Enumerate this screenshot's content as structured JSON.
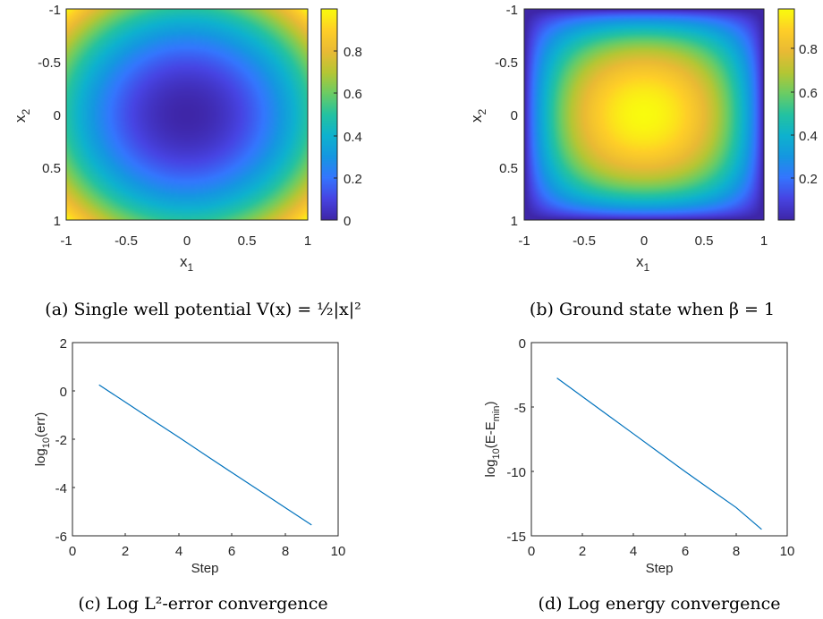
{
  "chart_data": [
    {
      "type": "heatmap",
      "function": "single_well_potential",
      "xlabel_base": "x",
      "xlabel_sub": "1",
      "ylabel_base": "x",
      "ylabel_sub": "2",
      "xlim": [
        -1,
        1
      ],
      "ylim": [
        -1,
        1
      ],
      "y_direction": "reversed",
      "xticks": [
        "-1",
        "-0.5",
        "0",
        "0.5",
        "1"
      ],
      "yticks": [
        "-1",
        "-0.5",
        "0",
        "0.5",
        "1"
      ],
      "colorbar": {
        "range": [
          0,
          1.0
        ],
        "ticks": [
          "0",
          "0.2",
          "0.4",
          "0.6",
          "0.8"
        ],
        "colormap": "parula"
      },
      "caption": "(a) Single well potential V(x) = ½|x|²"
    },
    {
      "type": "heatmap",
      "function": "ground_state",
      "xlabel_base": "x",
      "xlabel_sub": "1",
      "ylabel_base": "x",
      "ylabel_sub": "2",
      "xlim": [
        -1,
        1
      ],
      "ylim": [
        -1,
        1
      ],
      "y_direction": "reversed",
      "xticks": [
        "-1",
        "-0.5",
        "0",
        "0.5",
        "1"
      ],
      "yticks": [
        "-1",
        "-0.5",
        "0",
        "0.5",
        "1"
      ],
      "colorbar": {
        "range": [
          0.03,
          1.0
        ],
        "ticks": [
          "0.2",
          "0.4",
          "0.6",
          "0.8"
        ],
        "colormap": "parula"
      },
      "caption": "(b) Ground state when β = 1"
    },
    {
      "type": "line",
      "xlabel": "Step",
      "ylabel_base": "log",
      "ylabel_sub": "10",
      "ylabel_tail": "(err)",
      "xlim": [
        0,
        10
      ],
      "ylim": [
        -6,
        2
      ],
      "xticks": [
        "0",
        "2",
        "4",
        "6",
        "8",
        "10"
      ],
      "yticks": [
        "2",
        "0",
        "-2",
        "-4",
        "-6"
      ],
      "series": [
        {
          "color": "#0072bd",
          "x": [
            1,
            2,
            3,
            4,
            5,
            6,
            7,
            8,
            9
          ],
          "y": [
            0.25,
            -0.47,
            -1.2,
            -1.92,
            -2.65,
            -3.38,
            -4.1,
            -4.83,
            -5.55
          ]
        }
      ],
      "caption": "(c) Log L²-error convergence"
    },
    {
      "type": "line",
      "xlabel": "Step",
      "ylabel_base": "log",
      "ylabel_sub": "10",
      "ylabel_tail": "(E-E",
      "ylabel_sub2": "min",
      "ylabel_end": ")",
      "xlim": [
        0,
        10
      ],
      "ylim": [
        -15,
        0
      ],
      "xticks": [
        "0",
        "2",
        "4",
        "6",
        "8",
        "10"
      ],
      "yticks": [
        "0",
        "-5",
        "-10",
        "-15"
      ],
      "series": [
        {
          "color": "#0072bd",
          "x": [
            1,
            2,
            3,
            4,
            5,
            6,
            7,
            8,
            9
          ],
          "y": [
            -2.75,
            -4.2,
            -5.65,
            -7.1,
            -8.55,
            -10.0,
            -11.4,
            -12.8,
            -14.5
          ]
        }
      ],
      "caption": "(d) Log energy convergence"
    }
  ]
}
